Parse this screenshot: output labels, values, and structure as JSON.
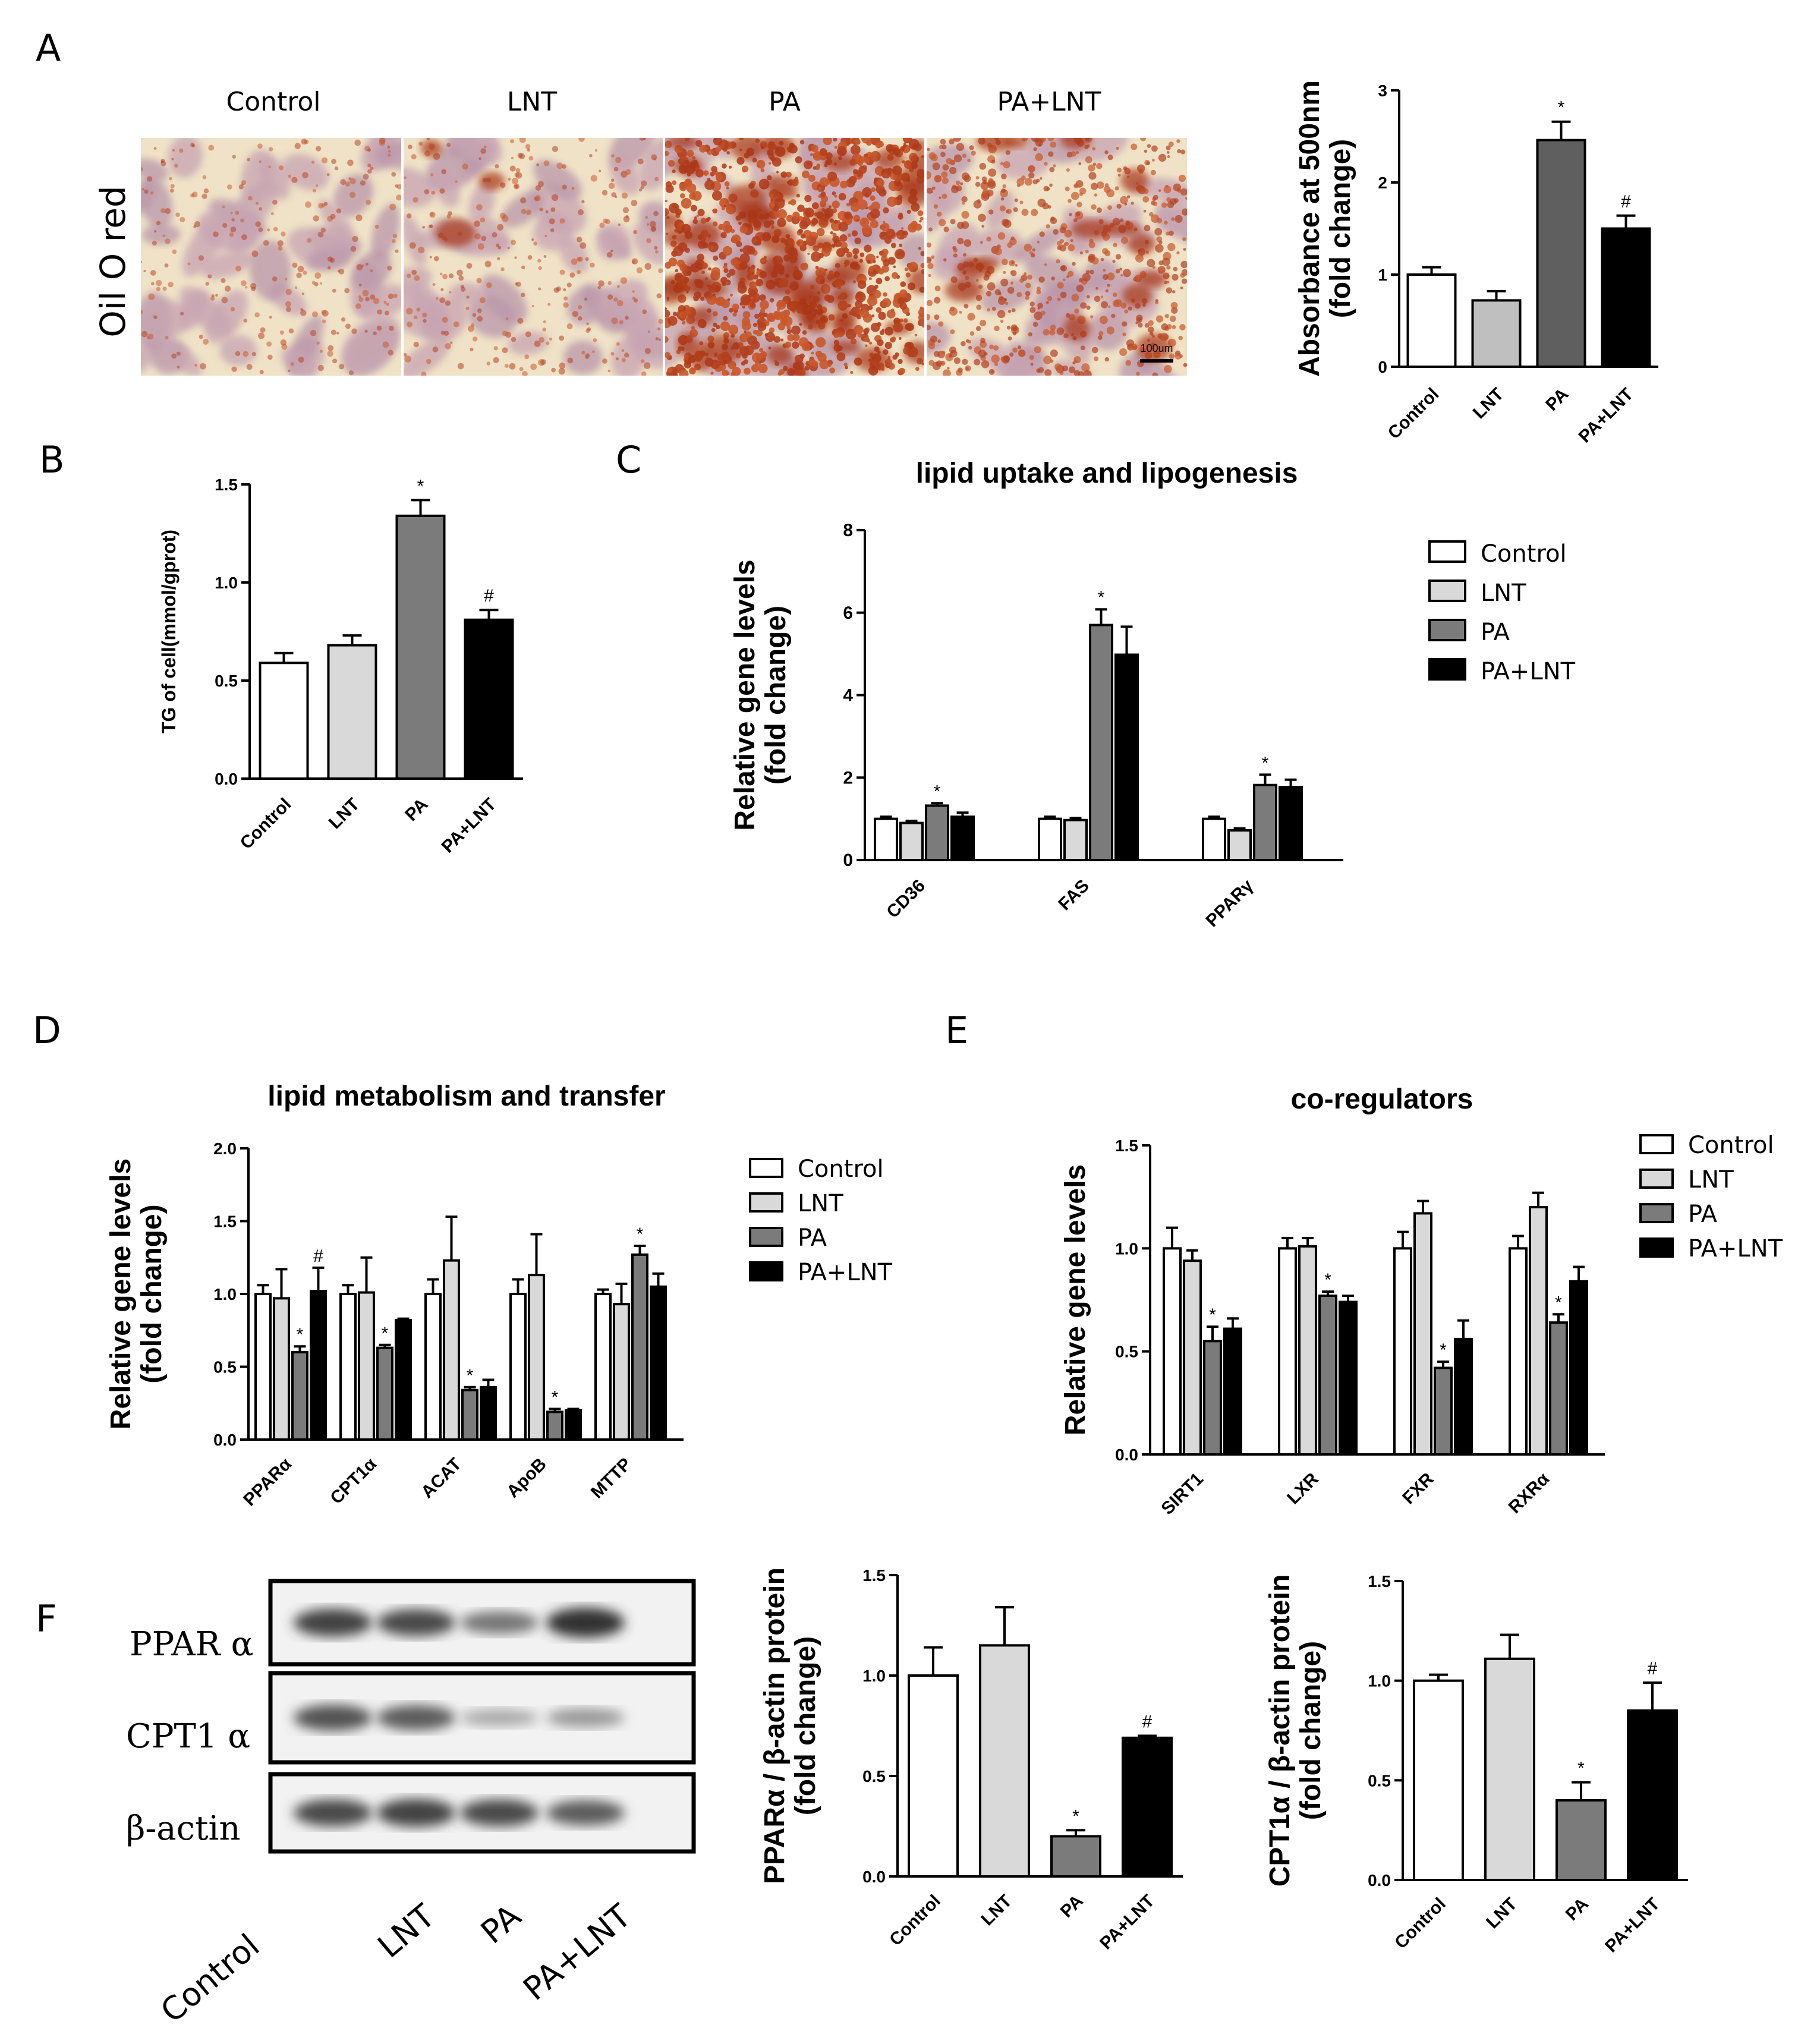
{
  "figure": {
    "panel_letters": [
      "A",
      "B",
      "C",
      "D",
      "E",
      "F"
    ],
    "microscopy": {
      "row_label": "Oil O red",
      "columns": [
        "Control",
        "LNT",
        "PA",
        "PA+LNT"
      ],
      "scale_bar_label": "100um"
    },
    "western_blot": {
      "bands": [
        "PPAR α",
        "CPT1 α",
        "β-actin"
      ],
      "lanes": [
        "Control",
        "LNT",
        "PA",
        "PA+LNT"
      ],
      "intensity": [
        [
          0.85,
          0.8,
          0.55,
          0.95
        ],
        [
          0.75,
          0.7,
          0.25,
          0.35
        ],
        [
          0.8,
          0.85,
          0.8,
          0.7
        ]
      ]
    },
    "colors": {
      "Control": "#ffffff",
      "LNT": "#d9d9d9",
      "PA": "#7b7b7b",
      "PA+LNT": "#000000",
      "PA_dark": "#5f5f5f"
    }
  },
  "chart_data": [
    {
      "id": "A",
      "type": "bar",
      "categories": [
        "Control",
        "LNT",
        "PA",
        "PA+LNT"
      ],
      "values": [
        1.0,
        0.72,
        2.46,
        1.5
      ],
      "errors": [
        0.08,
        0.1,
        0.2,
        0.14
      ],
      "marks": [
        "",
        "",
        "*",
        "#"
      ],
      "ylabel": "Absorbance at 500nm\n(fold change)",
      "ylim": [
        0,
        3
      ],
      "yticks": [
        0,
        1,
        2,
        3
      ],
      "ytick_labels": [
        "0",
        "1",
        "2",
        "3"
      ],
      "colors": [
        "#ffffff",
        "#bfbfbf",
        "#5f5f5f",
        "#000000"
      ]
    },
    {
      "id": "B",
      "type": "bar",
      "categories": [
        "Control",
        "LNT",
        "PA",
        "PA+LNT"
      ],
      "values": [
        0.59,
        0.68,
        1.34,
        0.81
      ],
      "errors": [
        0.05,
        0.05,
        0.08,
        0.05
      ],
      "marks": [
        "",
        "",
        "*",
        "#"
      ],
      "ylabel": "TG of cell(mmol/gprot)",
      "ylim": [
        0,
        1.5
      ],
      "yticks": [
        0,
        0.5,
        1.0,
        1.5
      ],
      "ytick_labels": [
        "0.0",
        "0.5",
        "1.0",
        "1.5"
      ],
      "colors": [
        "#ffffff",
        "#d9d9d9",
        "#7b7b7b",
        "#000000"
      ]
    },
    {
      "id": "C",
      "type": "bar",
      "title": "lipid uptake and  lipogenesis",
      "categories": [
        "CD36",
        "FAS",
        "PPARγ"
      ],
      "series": [
        {
          "name": "Control",
          "values": [
            1.0,
            1.0,
            1.0
          ],
          "errors": [
            0.05,
            0.05,
            0.05
          ],
          "marks": [
            "",
            "",
            ""
          ]
        },
        {
          "name": "LNT",
          "values": [
            0.9,
            0.97,
            0.72
          ],
          "errors": [
            0.05,
            0.05,
            0.05
          ],
          "marks": [
            "",
            "",
            ""
          ]
        },
        {
          "name": "PA",
          "values": [
            1.32,
            5.7,
            1.82
          ],
          "errors": [
            0.06,
            0.38,
            0.25
          ],
          "marks": [
            "*",
            "*",
            "*"
          ]
        },
        {
          "name": "PA+LNT",
          "values": [
            1.05,
            4.98,
            1.77
          ],
          "errors": [
            0.1,
            0.68,
            0.18
          ],
          "marks": [
            "",
            "",
            ""
          ]
        }
      ],
      "ylabel": "Relative gene levels\n(fold change)",
      "ylim": [
        0,
        8
      ],
      "yticks": [
        0,
        2,
        4,
        6,
        8
      ],
      "ytick_labels": [
        "0",
        "2",
        "4",
        "6",
        "8"
      ],
      "legend": [
        "Control",
        "LNT",
        "PA",
        "PA+LNT"
      ]
    },
    {
      "id": "D",
      "type": "bar",
      "title": "lipid metabolism and transfer",
      "categories": [
        "PPARα",
        "CPT1α",
        "ACAT",
        "ApoB",
        "MTTP"
      ],
      "series": [
        {
          "name": "Control",
          "values": [
            1.0,
            1.0,
            1.0,
            1.0,
            1.0
          ],
          "errors": [
            0.06,
            0.06,
            0.1,
            0.1,
            0.03
          ],
          "marks": [
            "",
            "",
            "",
            "",
            ""
          ]
        },
        {
          "name": "LNT",
          "values": [
            0.97,
            1.01,
            1.23,
            1.13,
            0.93
          ],
          "errors": [
            0.2,
            0.24,
            0.3,
            0.28,
            0.14
          ],
          "marks": [
            "",
            "",
            "",
            "",
            ""
          ]
        },
        {
          "name": "PA",
          "values": [
            0.6,
            0.63,
            0.34,
            0.19,
            1.27
          ],
          "errors": [
            0.04,
            0.02,
            0.02,
            0.02,
            0.06
          ],
          "marks": [
            "*",
            "*",
            "*",
            "*",
            "*"
          ]
        },
        {
          "name": "PA+LNT",
          "values": [
            1.02,
            0.82,
            0.36,
            0.2,
            1.05
          ],
          "errors": [
            0.16,
            0.01,
            0.05,
            0.01,
            0.09
          ],
          "marks": [
            "#",
            "",
            "",
            "",
            ""
          ]
        }
      ],
      "ylabel": "Relative gene levels\n(fold change)",
      "ylim": [
        0,
        2.0
      ],
      "yticks": [
        0,
        0.5,
        1.0,
        1.5,
        2.0
      ],
      "ytick_labels": [
        "0.0",
        "0.5",
        "1.0",
        "1.5",
        "2.0"
      ],
      "legend": [
        "Control",
        "LNT",
        "PA",
        "PA+LNT"
      ]
    },
    {
      "id": "E",
      "type": "bar",
      "title": "co-regulators",
      "categories": [
        "SIRT1",
        "LXR",
        "FXR",
        "RXRα"
      ],
      "series": [
        {
          "name": "Control",
          "values": [
            1.0,
            1.0,
            1.0,
            1.0
          ],
          "errors": [
            0.1,
            0.05,
            0.08,
            0.06
          ],
          "marks": [
            "",
            "",
            "",
            ""
          ]
        },
        {
          "name": "LNT",
          "values": [
            0.94,
            1.01,
            1.17,
            1.2
          ],
          "errors": [
            0.05,
            0.04,
            0.06,
            0.07
          ],
          "marks": [
            "",
            "",
            "",
            ""
          ]
        },
        {
          "name": "PA",
          "values": [
            0.55,
            0.77,
            0.42,
            0.64
          ],
          "errors": [
            0.07,
            0.02,
            0.03,
            0.04
          ],
          "marks": [
            "*",
            "*",
            "*",
            "*"
          ]
        },
        {
          "name": "PA+LNT",
          "values": [
            0.61,
            0.74,
            0.56,
            0.84
          ],
          "errors": [
            0.05,
            0.03,
            0.09,
            0.07
          ],
          "marks": [
            "",
            "",
            "",
            ""
          ]
        }
      ],
      "ylabel": "Relative gene levels",
      "ylim": [
        0,
        1.5
      ],
      "yticks": [
        0,
        0.5,
        1.0,
        1.5
      ],
      "ytick_labels": [
        "0.0",
        "0.5",
        "1.0",
        "1.5"
      ],
      "legend": [
        "Control",
        "LNT",
        "PA",
        "PA+LNT"
      ]
    },
    {
      "id": "F1",
      "type": "bar",
      "categories": [
        "Control",
        "LNT",
        "PA",
        "PA+LNT"
      ],
      "values": [
        1.0,
        1.15,
        0.2,
        0.69
      ],
      "errors": [
        0.14,
        0.19,
        0.03,
        0.01
      ],
      "marks": [
        "",
        "",
        "*",
        "#"
      ],
      "ylabel": "PPARα / β-actin protein\n(fold change)",
      "ylim": [
        0,
        1.5
      ],
      "yticks": [
        0,
        0.5,
        1.0,
        1.5
      ],
      "ytick_labels": [
        "0.0",
        "0.5",
        "1.0",
        "1.5"
      ],
      "colors": [
        "#ffffff",
        "#d9d9d9",
        "#7b7b7b",
        "#000000"
      ]
    },
    {
      "id": "F2",
      "type": "bar",
      "categories": [
        "Control",
        "LNT",
        "PA",
        "PA+LNT"
      ],
      "values": [
        1.0,
        1.11,
        0.4,
        0.85
      ],
      "errors": [
        0.03,
        0.12,
        0.09,
        0.14
      ],
      "marks": [
        "",
        "",
        "*",
        "#"
      ],
      "ylabel": "CPT1α / β-actin protein\n(fold change)",
      "ylim": [
        0,
        1.5
      ],
      "yticks": [
        0,
        0.5,
        1.0,
        1.5
      ],
      "ytick_labels": [
        "0.0",
        "0.5",
        "1.0",
        "1.5"
      ],
      "colors": [
        "#ffffff",
        "#d9d9d9",
        "#7b7b7b",
        "#000000"
      ]
    }
  ]
}
